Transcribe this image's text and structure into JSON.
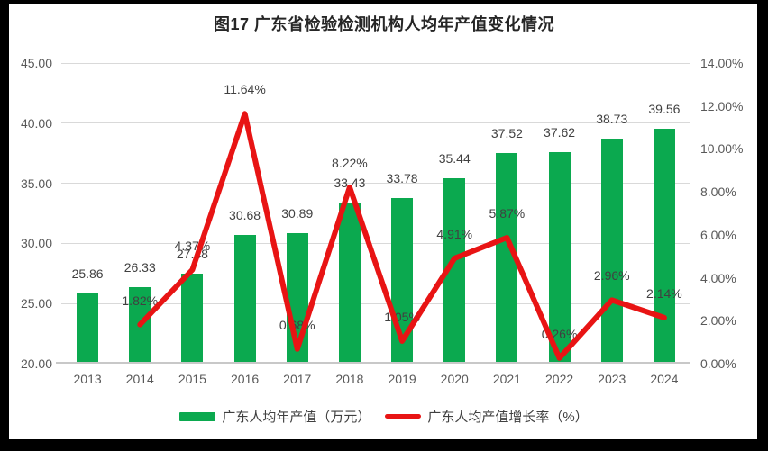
{
  "title": "图17  广东省检验检测机构人均年产值变化情况",
  "chart_data": {
    "type": "bar",
    "subtype": "combo-bar-line",
    "title": "图17  广东省检验检测机构人均年产值变化情况",
    "categories": [
      "2013",
      "2014",
      "2015",
      "2016",
      "2017",
      "2018",
      "2019",
      "2020",
      "2021",
      "2022",
      "2023",
      "2024"
    ],
    "series": [
      {
        "name": "广东人均年产值（万元）",
        "type": "bar",
        "axis": "left",
        "values": [
          25.86,
          26.33,
          27.48,
          30.68,
          30.89,
          33.43,
          33.78,
          35.44,
          37.52,
          37.62,
          38.73,
          39.56
        ],
        "labels": [
          "25.86",
          "26.33",
          "27.48",
          "30.68",
          "30.89",
          "33.43",
          "33.78",
          "35.44",
          "37.52",
          "37.62",
          "38.73",
          "39.56"
        ]
      },
      {
        "name": "广东人均产值增长率（%）",
        "type": "line",
        "axis": "right",
        "values": [
          null,
          1.82,
          4.37,
          11.64,
          0.68,
          8.22,
          1.05,
          4.91,
          5.87,
          0.26,
          2.96,
          2.14
        ],
        "labels": [
          null,
          "1.82%",
          "4.37%",
          "11.64%",
          "0.68%",
          "8.22%",
          "1.05%",
          "4.91%",
          "5.87%",
          "0.26%",
          "2.96%",
          "2.14%"
        ]
      }
    ],
    "left_axis": {
      "range": [
        20,
        45
      ],
      "ticks": [
        "20.00",
        "25.00",
        "30.00",
        "35.00",
        "40.00",
        "45.00"
      ]
    },
    "right_axis": {
      "range": [
        0,
        14
      ],
      "ticks": [
        "0.00%",
        "2.00%",
        "4.00%",
        "6.00%",
        "8.00%",
        "10.00%",
        "12.00%",
        "14.00%"
      ]
    },
    "grid": "horizontal",
    "legend_position": "bottom"
  },
  "colors": {
    "bar": "#0BA94F",
    "line": "#E81414",
    "grid": "#D9D9D9",
    "axis_line": "#C8C8C8",
    "tick_text": "#595959",
    "data_label": "#404040",
    "title_text": "#262626",
    "frame": "#000000"
  }
}
